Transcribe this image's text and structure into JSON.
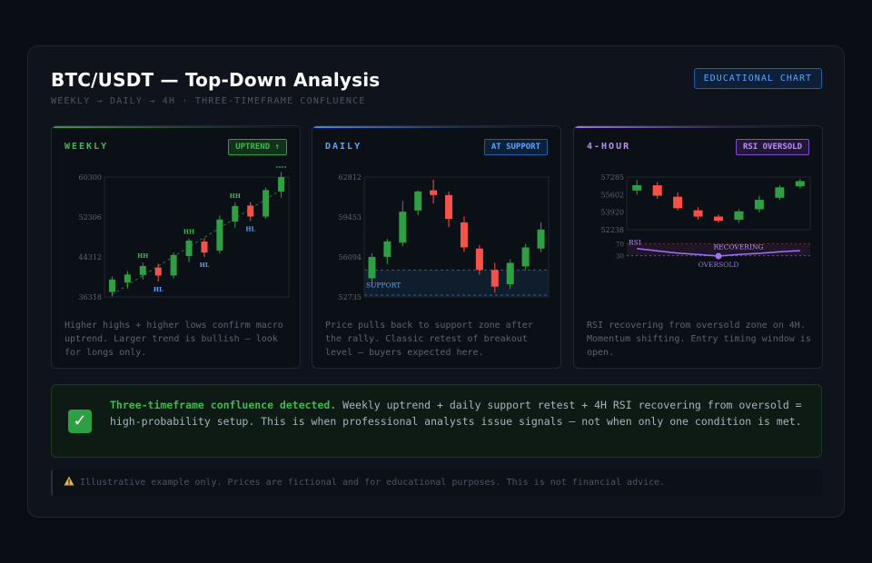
{
  "header": {
    "title": "BTC/USDT — Top-Down Analysis",
    "subtitle": "WEEKLY → DAILY → 4H · THREE-TIMEFRAME CONFLUENCE",
    "badge": "EDUCATIONAL CHART"
  },
  "panels": [
    {
      "title": "WEEKLY",
      "badge": "UPTREND ↑",
      "accent": "#2ea043",
      "description": "Higher highs + higher lows confirm macro uptrend. Larger trend is bullish — look for longs only."
    },
    {
      "title": "DAILY",
      "badge": "AT SUPPORT",
      "accent": "#388bfd",
      "description": "Price pulls back to support zone after the rally. Classic retest of breakout level — buyers expected here."
    },
    {
      "title": "4-HOUR",
      "badge": "RSI OVERSOLD",
      "accent": "#a371f7",
      "description": "RSI recovering from oversold zone on 4H. Momentum shifting. Entry timing window is open."
    }
  ],
  "confluence": {
    "lead": "Three-timeframe confluence detected.",
    "body": " Weekly uptrend + daily support retest + 4H RSI recovering from oversold = high-probability setup. This is when professional analysts issue signals — not when only one condition is met."
  },
  "disclaimer": "Illustrative example only. Prices are fictional and for educational purposes. This is not financial advice.",
  "colors": {
    "bull": "#2ea043",
    "bear": "#f85149",
    "rsi": "#a371f7",
    "support": "#388bfd"
  },
  "chart_data": [
    {
      "type": "candlestick",
      "title": "WEEKLY",
      "y_ticks": [
        "60300",
        "52306",
        "44312",
        "36318"
      ],
      "ylim": [
        36318,
        60300
      ],
      "candles": [
        {
          "o": 37300,
          "h": 40400,
          "l": 36400,
          "c": 39800
        },
        {
          "o": 39200,
          "h": 41500,
          "l": 38000,
          "c": 40800
        },
        {
          "o": 40700,
          "h": 43200,
          "l": 39800,
          "c": 42500
        },
        {
          "o": 42200,
          "h": 43000,
          "l": 39400,
          "c": 40600
        },
        {
          "o": 40600,
          "h": 45200,
          "l": 40000,
          "c": 44700
        },
        {
          "o": 44500,
          "h": 48000,
          "l": 43300,
          "c": 47600
        },
        {
          "o": 47400,
          "h": 48100,
          "l": 44300,
          "c": 45200
        },
        {
          "o": 45600,
          "h": 52600,
          "l": 45000,
          "c": 51800
        },
        {
          "o": 51400,
          "h": 55200,
          "l": 50200,
          "c": 54500
        },
        {
          "o": 54600,
          "h": 55300,
          "l": 51500,
          "c": 52400
        },
        {
          "o": 52400,
          "h": 58200,
          "l": 52000,
          "c": 57700
        },
        {
          "o": 57400,
          "h": 61300,
          "l": 56200,
          "c": 60300
        }
      ],
      "annotations": [
        {
          "label": "HH",
          "i": 2
        },
        {
          "label": "HL",
          "i": 3
        },
        {
          "label": "HH",
          "i": 5
        },
        {
          "label": "HL",
          "i": 6
        },
        {
          "label": "HH",
          "i": 8
        },
        {
          "label": "HL",
          "i": 9
        },
        {
          "label": "HH",
          "i": 11
        }
      ]
    },
    {
      "type": "candlestick",
      "title": "DAILY",
      "y_ticks": [
        "62812",
        "59453",
        "56094",
        "52735"
      ],
      "ylim": [
        52735,
        62812
      ],
      "support_label": "SUPPORT",
      "support_zone": [
        52735,
        55000
      ],
      "candles": [
        {
          "o": 54300,
          "h": 56400,
          "l": 53700,
          "c": 56100
        },
        {
          "o": 56100,
          "h": 57600,
          "l": 55500,
          "c": 57400
        },
        {
          "o": 57300,
          "h": 60800,
          "l": 57000,
          "c": 59900
        },
        {
          "o": 60000,
          "h": 61700,
          "l": 59600,
          "c": 61600
        },
        {
          "o": 61700,
          "h": 62600,
          "l": 60600,
          "c": 61300
        },
        {
          "o": 61300,
          "h": 61600,
          "l": 58600,
          "c": 59300
        },
        {
          "o": 59000,
          "h": 59500,
          "l": 56500,
          "c": 56900
        },
        {
          "o": 56800,
          "h": 57100,
          "l": 54600,
          "c": 55000
        },
        {
          "o": 55000,
          "h": 55600,
          "l": 53100,
          "c": 53600
        },
        {
          "o": 53800,
          "h": 55900,
          "l": 53400,
          "c": 55600
        },
        {
          "o": 55300,
          "h": 57200,
          "l": 55000,
          "c": 56900
        },
        {
          "o": 56800,
          "h": 59000,
          "l": 56500,
          "c": 58400
        }
      ]
    },
    {
      "type": "candlestick",
      "title": "4-HOUR",
      "y_ticks": [
        "57285",
        "55602",
        "53920",
        "52238"
      ],
      "ylim": [
        52238,
        57285
      ],
      "candles": [
        {
          "o": 56000,
          "h": 57000,
          "l": 55600,
          "c": 56500
        },
        {
          "o": 56500,
          "h": 56800,
          "l": 55200,
          "c": 55500
        },
        {
          "o": 55400,
          "h": 55800,
          "l": 54100,
          "c": 54300
        },
        {
          "o": 54100,
          "h": 54400,
          "l": 53200,
          "c": 53500
        },
        {
          "o": 53500,
          "h": 53700,
          "l": 52900,
          "c": 53100
        },
        {
          "o": 53200,
          "h": 54200,
          "l": 52900,
          "c": 54000
        },
        {
          "o": 54200,
          "h": 55500,
          "l": 53900,
          "c": 55100
        },
        {
          "o": 55300,
          "h": 56500,
          "l": 55100,
          "c": 56300
        },
        {
          "o": 56400,
          "h": 57100,
          "l": 56200,
          "c": 56900
        }
      ],
      "rsi": {
        "label": "RSI",
        "ticks": [
          "70",
          "30"
        ],
        "ylim": [
          20,
          80
        ],
        "values": [
          54,
          46,
          39,
          34,
          29,
          34,
          38,
          43,
          47
        ],
        "oversold_index": 4,
        "recovering_label": "RECOVERING",
        "oversold_label": "OVERSOLD"
      }
    }
  ]
}
